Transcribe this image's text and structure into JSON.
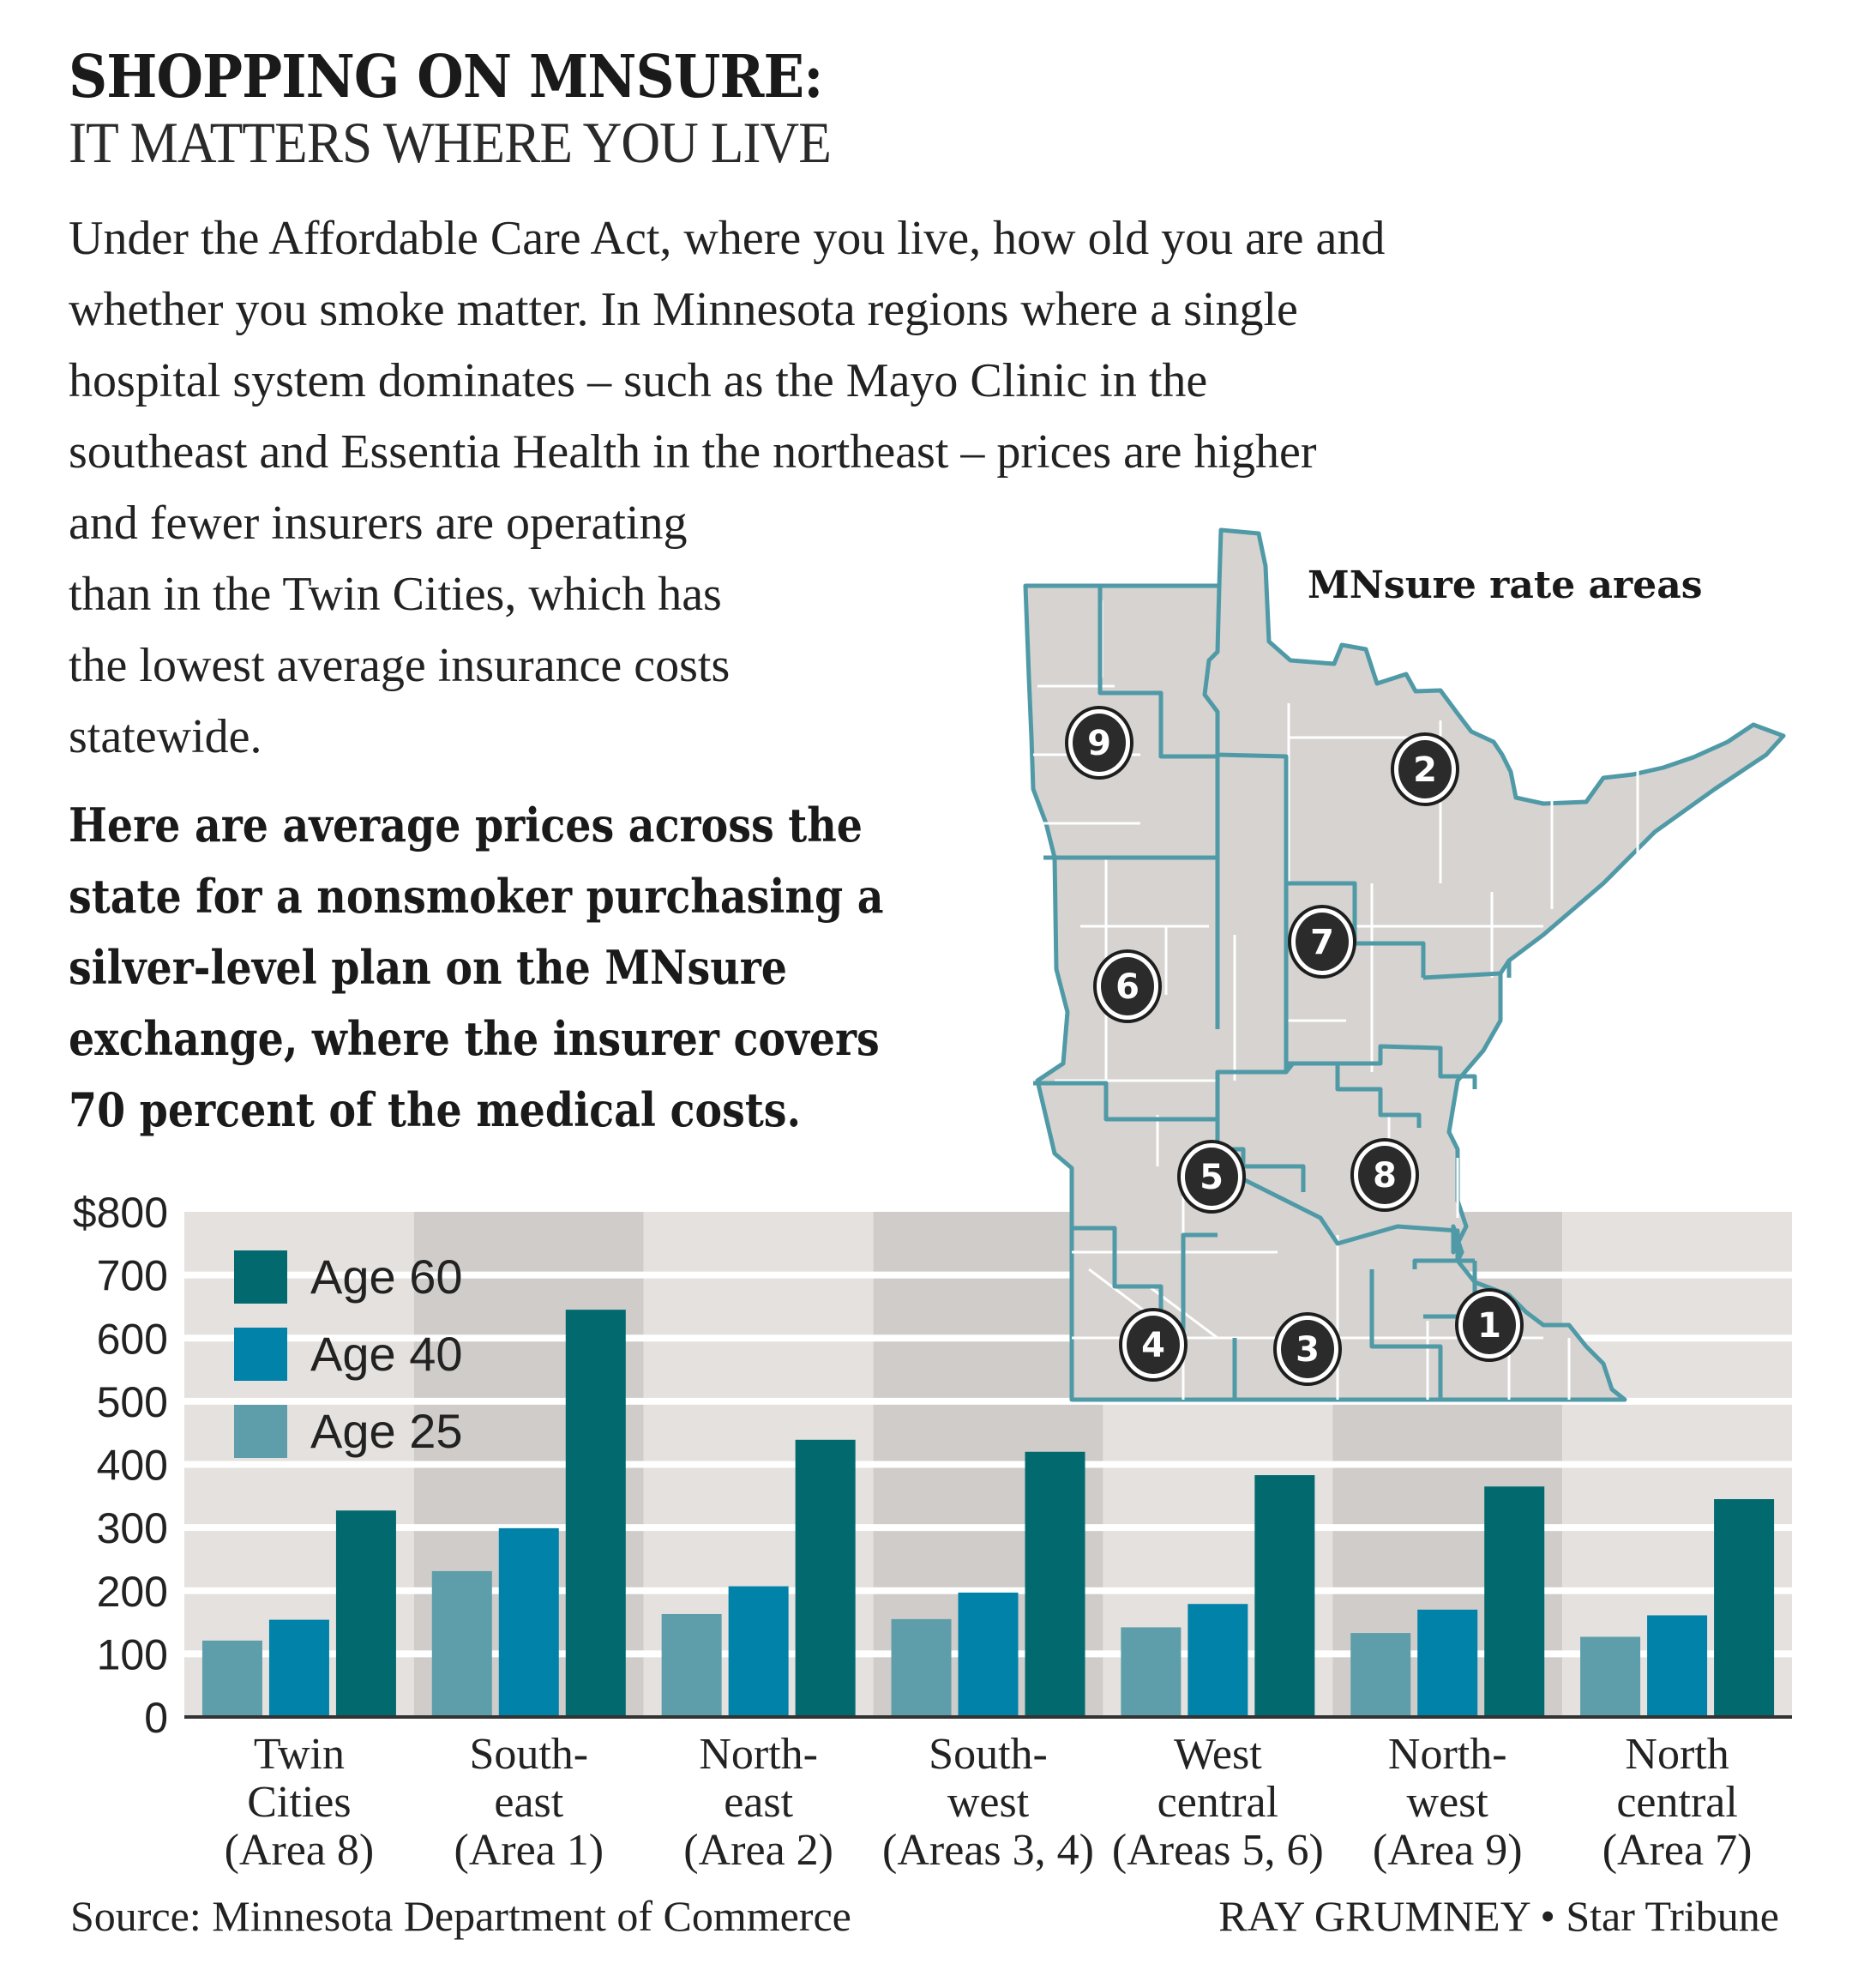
{
  "header": {
    "title": "SHOPPING ON MNSURE:",
    "subtitle": "IT MATTERS WHERE YOU LIVE"
  },
  "intro": {
    "lines": [
      "Under the Affordable Care Act, where you live, how old you are and",
      "whether you smoke matter. In Minnesota regions where a single",
      "hospital system dominates – such as the Mayo Clinic in the",
      "southeast and Essentia Health in the northeast – prices are higher",
      "and fewer insurers are operating",
      "than in the Twin Cities, which has",
      "the lowest average insurance costs",
      "statewide."
    ]
  },
  "highlight": {
    "lines": [
      "Here are average prices across the",
      "state for a nonsmoker purchasing a",
      "silver-level plan on the MNsure",
      "exchange, where the insurer covers",
      "70 percent of the medical costs."
    ]
  },
  "map": {
    "title": "MNsure rate areas",
    "areas": [
      "1",
      "2",
      "3",
      "4",
      "5",
      "6",
      "7",
      "8",
      "9"
    ],
    "colors": {
      "fill": "#d6d3d0",
      "region_border": "#4f9aa6",
      "county_line": "#ffffff",
      "marker": "#2b2b2b"
    }
  },
  "chart_data": {
    "type": "bar",
    "title": "",
    "xlabel": "",
    "ylabel": "",
    "ylim": [
      0,
      800
    ],
    "yticks": [
      0,
      100,
      200,
      300,
      400,
      500,
      600,
      700,
      800
    ],
    "ytick_labels": [
      "0",
      "100",
      "200",
      "300",
      "400",
      "500",
      "600",
      "700",
      "$800"
    ],
    "grid": true,
    "legend_position": "top-left",
    "categories": [
      [
        "Twin",
        "Cities",
        "(Area 8)"
      ],
      [
        "South-",
        "east",
        "(Area 1)"
      ],
      [
        "North-",
        "east",
        "(Area 2)"
      ],
      [
        "South-",
        "west",
        "(Areas 3, 4)"
      ],
      [
        "West",
        "central",
        "(Areas 5, 6)"
      ],
      [
        "North-",
        "west",
        "(Area 9)"
      ],
      [
        "North",
        "central",
        "(Area 7)"
      ]
    ],
    "series": [
      {
        "name": "Age 25",
        "color": "#5e9eaa",
        "values": [
          121,
          231,
          163,
          155,
          142,
          133,
          127
        ]
      },
      {
        "name": "Age 40",
        "color": "#0082a9",
        "values": [
          154,
          299,
          207,
          197,
          179,
          170,
          161
        ]
      },
      {
        "name": "Age 60",
        "color": "#026a6f",
        "values": [
          327,
          645,
          439,
          420,
          383,
          365,
          345
        ]
      }
    ],
    "legend_order": [
      "Age 60",
      "Age 40",
      "Age 25"
    ],
    "background_colors": {
      "light": "#e4e1de",
      "dark": "#cfccc9"
    }
  },
  "footer": {
    "source": "Source: Minnesota Department of Commerce",
    "credit": "RAY GRUMNEY • Star Tribune"
  }
}
